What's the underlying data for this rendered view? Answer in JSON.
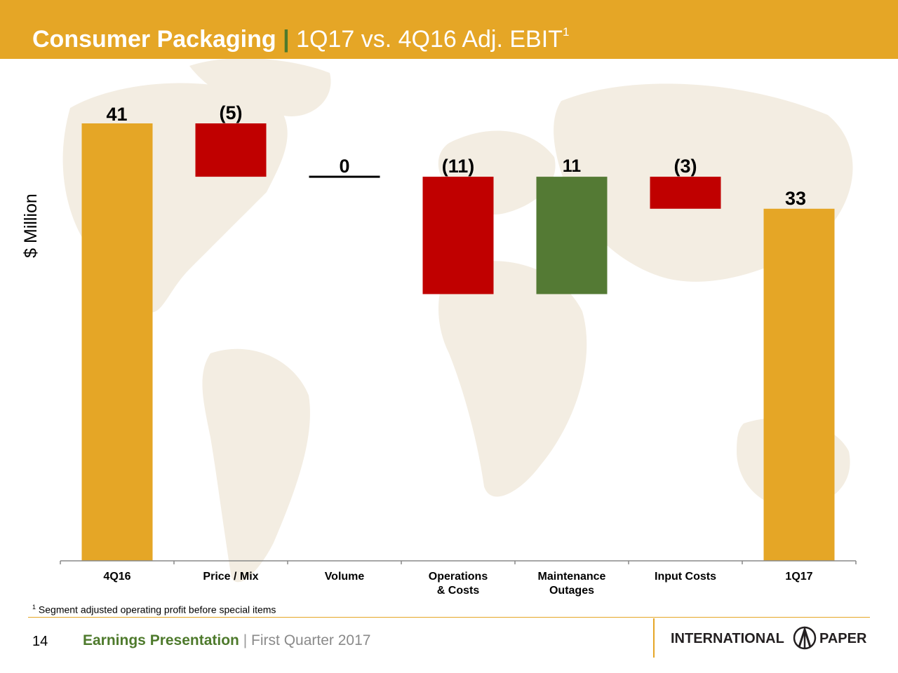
{
  "header": {
    "title_main": "Consumer Packaging",
    "title_separator": "|",
    "title_sub": "1Q17 vs. 4Q16 Adj. EBIT",
    "title_footnote_mark": "1"
  },
  "chart_data": {
    "type": "waterfall",
    "ylabel": "$ Million",
    "categories": [
      [
        "4Q16"
      ],
      [
        "Price / Mix"
      ],
      [
        "Volume"
      ],
      [
        "Operations",
        "& Costs"
      ],
      [
        "Maintenance",
        "Outages"
      ],
      [
        "Input Costs"
      ],
      [
        "1Q17"
      ]
    ],
    "values": [
      41,
      -5,
      0,
      -11,
      11,
      -3,
      33
    ],
    "kinds": [
      "total",
      "delta",
      "delta",
      "delta",
      "delta",
      "delta",
      "total"
    ],
    "data_labels": [
      "41",
      "(5)",
      "0",
      "(11)",
      "11",
      "(3)",
      "33"
    ],
    "ylim": [
      0,
      41
    ],
    "colors": {
      "total": "#E5A626",
      "negative": "#C00000",
      "positive": "#547A34",
      "zero": "#000000"
    },
    "grid": false,
    "legend": "none"
  },
  "footnote": {
    "mark": "1",
    "text": "Segment adjusted operating profit before special items"
  },
  "footer": {
    "page_number": "14",
    "presentation": "Earnings Presentation",
    "separator": "|",
    "period": "First Quarter 2017",
    "logo_left": "INTERNATIONAL",
    "logo_right": "PAPER"
  }
}
